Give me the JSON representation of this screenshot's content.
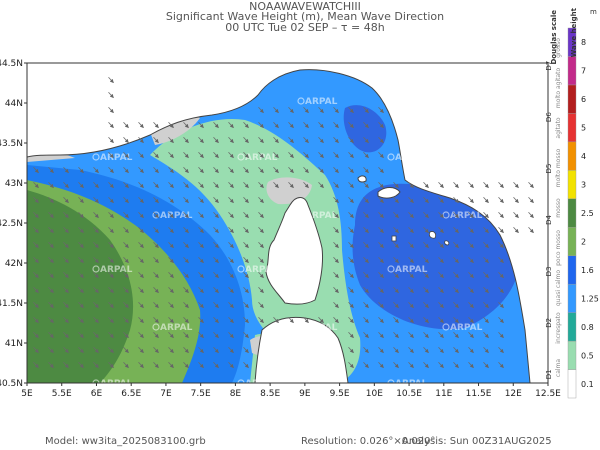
{
  "header": {
    "model_name": "NOAAWAVEWATCHIII",
    "variables": "Significant Wave Height (m), Mean Wave Direction",
    "time": "00 UTC Tue 02 SEP  –  τ = 48h"
  },
  "map": {
    "lon_range": [
      5,
      12.5
    ],
    "lat_range": [
      40.5,
      44.5
    ],
    "lon_ticks": [
      "5E",
      "5.5E",
      "6E",
      "6.5E",
      "7E",
      "7.5E",
      "8E",
      "8.5E",
      "9E",
      "9.5E",
      "10E",
      "10.5E",
      "11E",
      "11.5E",
      "12E",
      "12.5E"
    ],
    "lat_ticks": [
      "44.5N",
      "44N",
      "43.5N",
      "43N",
      "42.5N",
      "42N",
      "41.5N",
      "41N",
      "40.5N"
    ],
    "watermark": "ARPAL",
    "arrow_direction": "southeast",
    "colors": {
      "grey": "#d0d0d0",
      "light_green": "#99ddb0",
      "light_blue": "#3399ff",
      "mid_blue": "#1e7cf0",
      "dark_blue": "#2f66e0",
      "green": "#77b256",
      "dark_green": "#4d8a42",
      "border": "#444444",
      "arrow": "#666666",
      "land": "#ffffff"
    }
  },
  "legend": {
    "title": "Wave height",
    "unit": "m",
    "douglas_title": "Douglas scale",
    "levels": [
      {
        "value": "0.1",
        "color": "#ffffff"
      },
      {
        "value": "0.5",
        "color": "#99ddb0"
      },
      {
        "value": "0.8",
        "color": "#22aa99"
      },
      {
        "value": "1.25",
        "color": "#3399ff"
      },
      {
        "value": "1.6",
        "color": "#1f66ee"
      },
      {
        "value": "2",
        "color": "#77b256"
      },
      {
        "value": "2.5",
        "color": "#4d8a42"
      },
      {
        "value": "3",
        "color": "#f2e200"
      },
      {
        "value": "4",
        "color": "#f29100"
      },
      {
        "value": "5",
        "color": "#e63232"
      },
      {
        "value": "6",
        "color": "#b31e1e"
      },
      {
        "value": "7",
        "color": "#c22a8a"
      },
      {
        "value": "8",
        "color": "#6a35c8"
      }
    ],
    "douglas_codes": [
      "D1",
      "D2",
      "D3",
      "D4",
      "D5",
      "D6",
      "D7"
    ],
    "douglas_words": [
      "calma",
      "increspato",
      "quasi calmo",
      "poco mosso",
      "mosso",
      "molto mosso",
      "agitato",
      "molto agitato",
      "grosso"
    ]
  },
  "footer": {
    "model": "Model:  ww3ita_2025083100.grb",
    "resolution": "Resolution: 0.026°×0.020°",
    "analysis": "Analysis: Sun 00Z31AUG2025"
  }
}
